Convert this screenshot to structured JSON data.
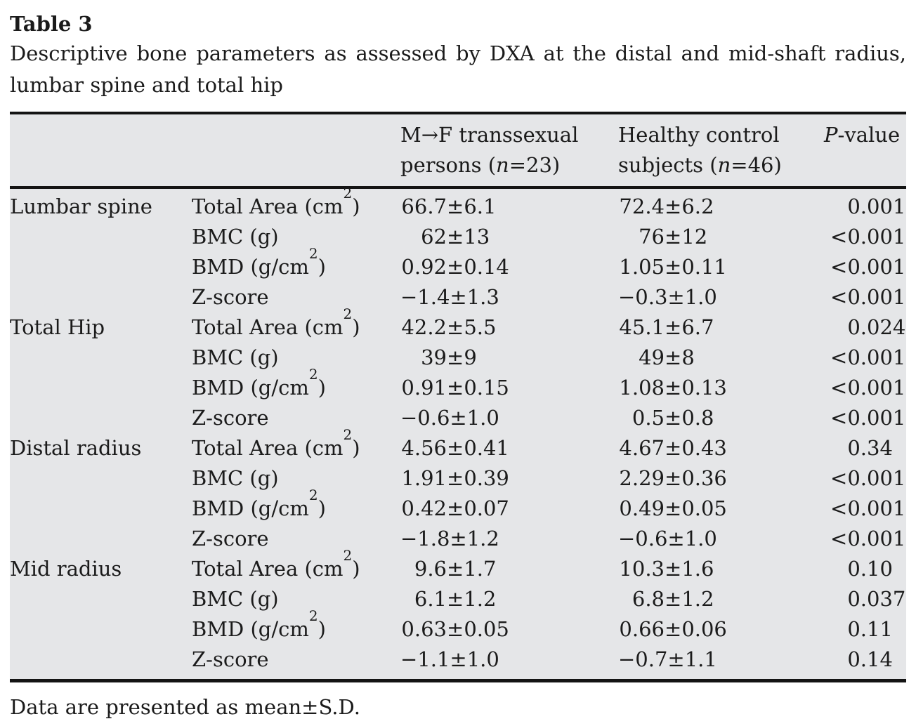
{
  "label": "Table 3",
  "caption_line1": "Descriptive bone parameters as assessed by DXA at the distal and mid-shaft radius,",
  "caption_line2": "lumbar spine and total hip",
  "columns": {
    "site_header": "",
    "parameter_header": "",
    "group1": {
      "line1": "M→F transsexual",
      "line2_prefix": "persons (",
      "n_italic": "n",
      "line2_suffix": "=23)"
    },
    "group2": {
      "line1": "Healthy control",
      "line2_prefix": "subjects (",
      "n_italic": "n",
      "line2_suffix": "=46)"
    },
    "pvalue": {
      "p_italic": "P",
      "suffix": "-value"
    }
  },
  "rows": [
    {
      "site": "Lumbar spine",
      "param": "Total Area (cm²)",
      "transsexual": "66.7±6.1",
      "control": "72.4±6.2",
      "p": "0.001"
    },
    {
      "site": "",
      "param": "BMC (g)",
      "transsexual": "62±13",
      "control": "76±12",
      "p": "<0.001"
    },
    {
      "site": "",
      "param": "BMD (g/cm²)",
      "transsexual": "0.92±0.14",
      "control": "1.05±0.11",
      "p": "<0.001"
    },
    {
      "site": "",
      "param": "Z-score",
      "transsexual": "−1.4±1.3",
      "control": "−0.3±1.0",
      "p": "<0.001"
    },
    {
      "site": "Total Hip",
      "param": "Total Area (cm²)",
      "transsexual": "42.2±5.5",
      "control": "45.1±6.7",
      "p": "0.024"
    },
    {
      "site": "",
      "param": "BMC (g)",
      "transsexual": "39±9",
      "control": "49±8",
      "p": "<0.001"
    },
    {
      "site": "",
      "param": "BMD (g/cm²)",
      "transsexual": "0.91±0.15",
      "control": "1.08±0.13",
      "p": "<0.001"
    },
    {
      "site": "",
      "param": "Z-score",
      "transsexual": "−0.6±1.0",
      "control": "0.5±0.8",
      "p": "<0.001"
    },
    {
      "site": "Distal radius",
      "param": "Total Area (cm²)",
      "transsexual": "4.56±0.41",
      "control": "4.67±0.43",
      "p": "0.34"
    },
    {
      "site": "",
      "param": "BMC (g)",
      "transsexual": "1.91±0.39",
      "control": "2.29±0.36",
      "p": "<0.001"
    },
    {
      "site": "",
      "param": "BMD (g/cm²)",
      "transsexual": "0.42±0.07",
      "control": "0.49±0.05",
      "p": "<0.001"
    },
    {
      "site": "",
      "param": "Z-score",
      "transsexual": "−1.8±1.2",
      "control": "−0.6±1.0",
      "p": "<0.001"
    },
    {
      "site": "Mid radius",
      "param": "Total Area (cm²)",
      "transsexual": "9.6±1.7",
      "control": "10.3±1.6",
      "p": "0.10"
    },
    {
      "site": "",
      "param": "BMC (g)",
      "transsexual": "6.1±1.2",
      "control": "6.8±1.2",
      "p": "0.037"
    },
    {
      "site": "",
      "param": "BMD (g/cm²)",
      "transsexual": "0.63±0.05",
      "control": "0.66±0.06",
      "p": "0.11"
    },
    {
      "site": "",
      "param": "Z-score",
      "transsexual": "−1.1±1.0",
      "control": "−0.7±1.1",
      "p": "0.14"
    }
  ],
  "footnote": "Data are presented as mean±S.D.",
  "colors": {
    "band": "#e5e6e8",
    "rule": "#141414",
    "text": "#1b1b1b",
    "background": "#ffffff"
  }
}
